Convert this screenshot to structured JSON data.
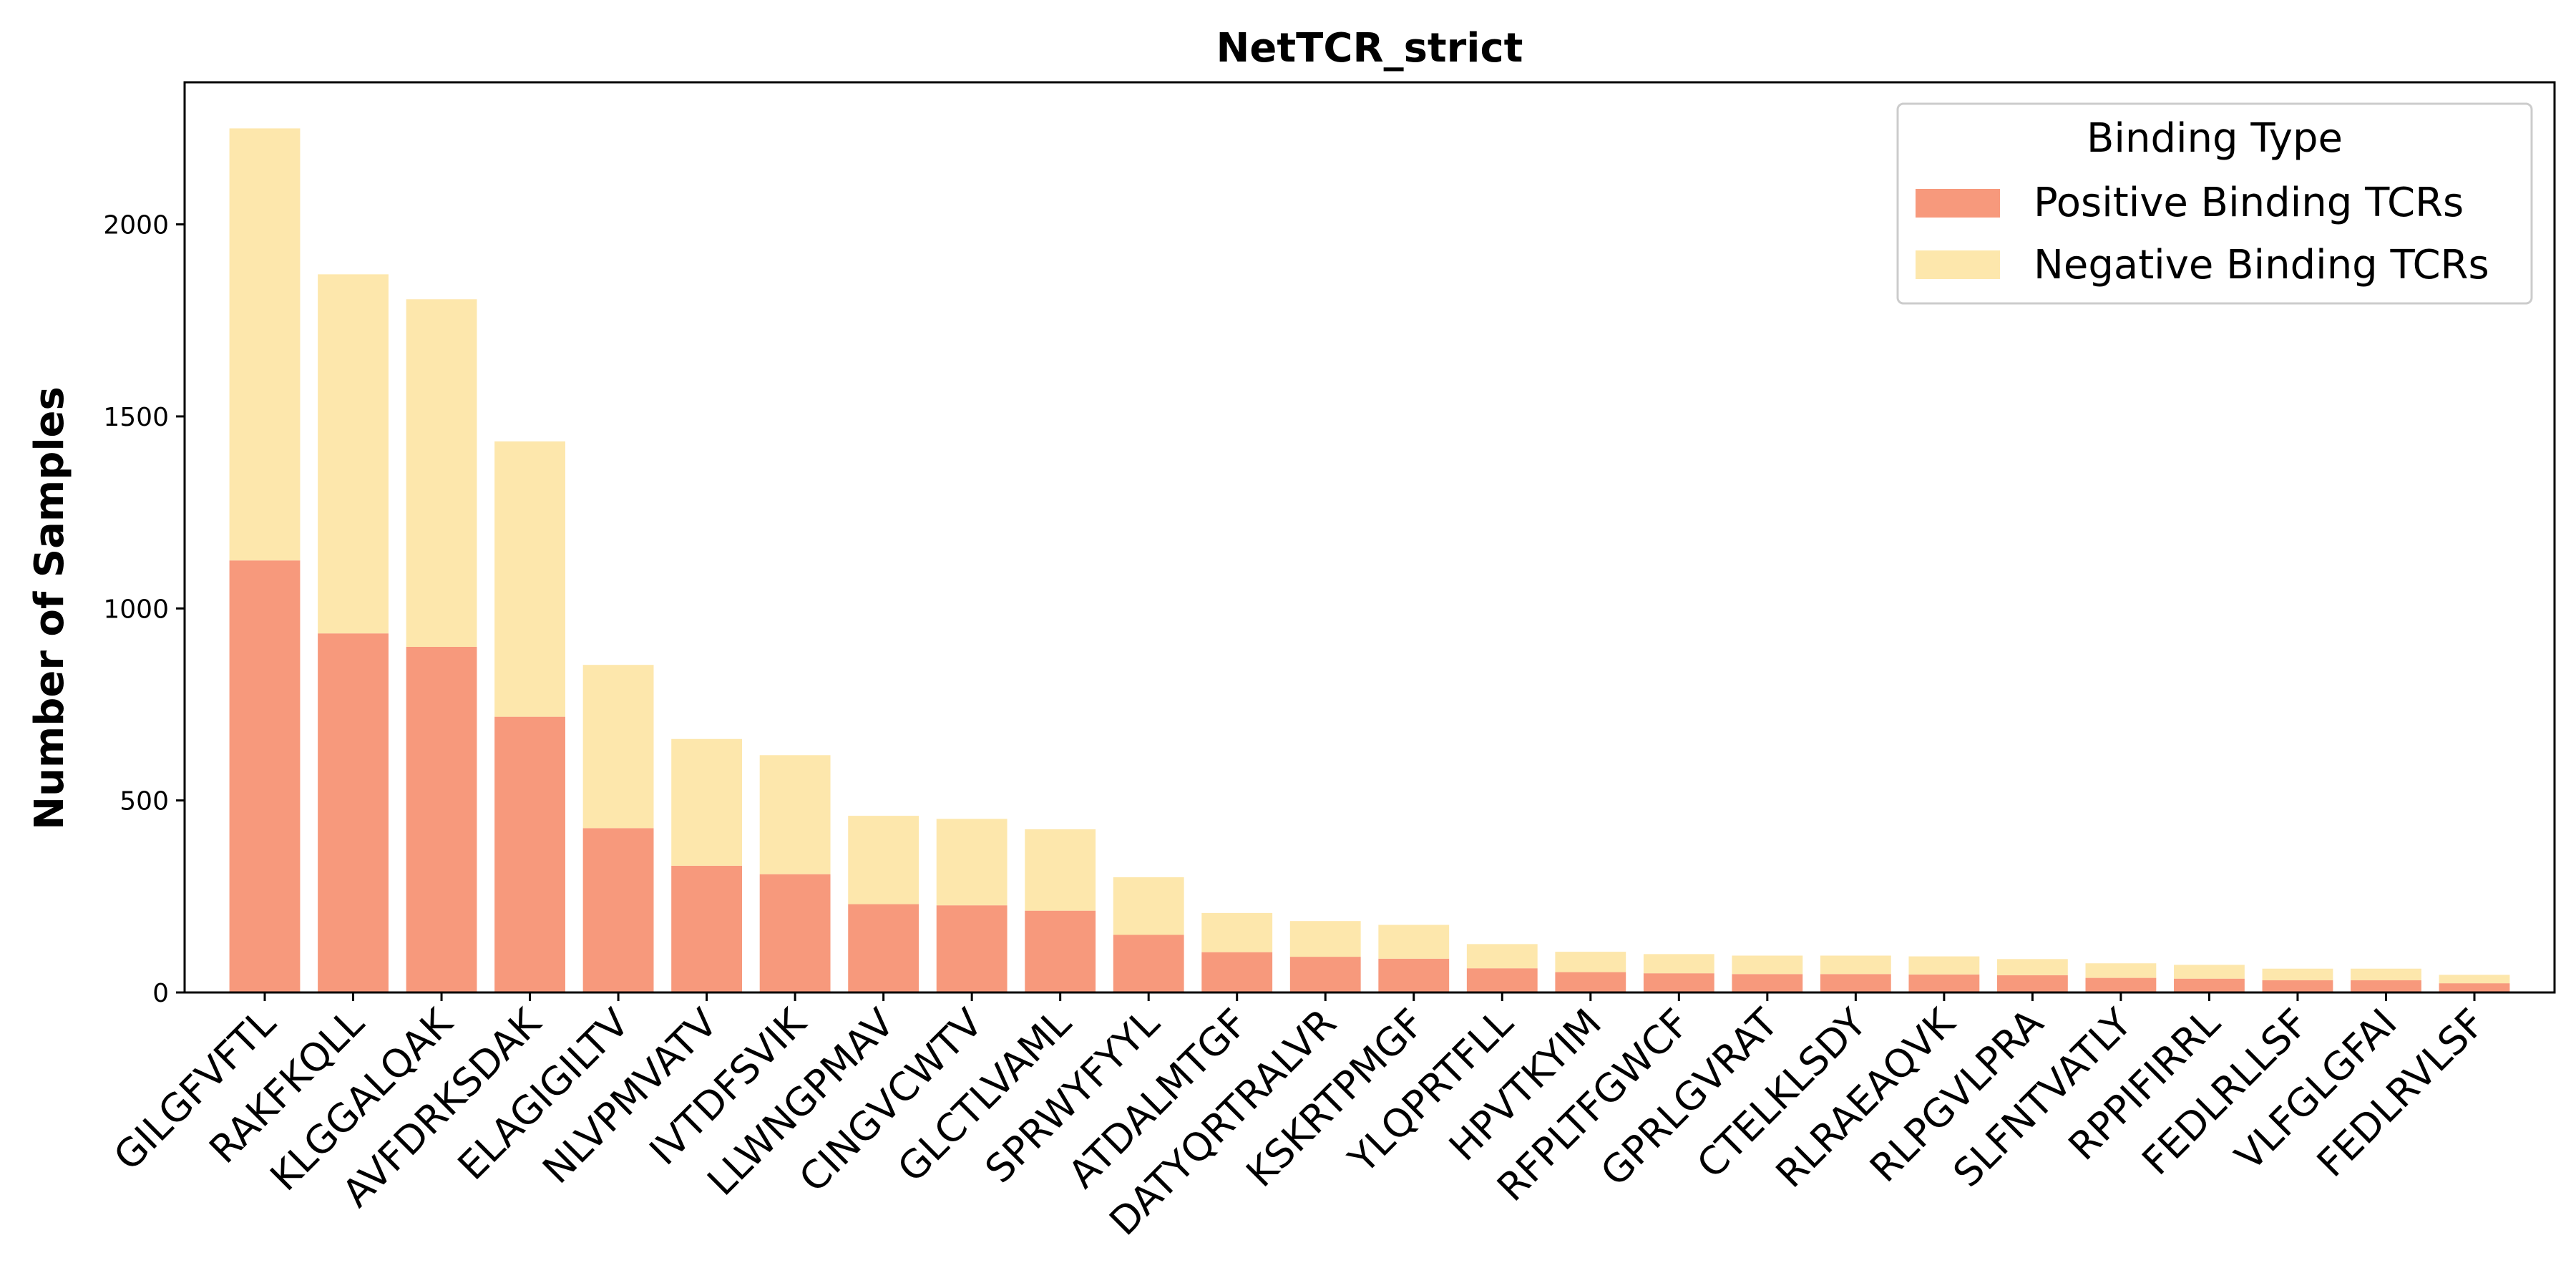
{
  "chart_data": {
    "type": "bar",
    "stacked": true,
    "title": "NetTCR_strict",
    "xlabel": "",
    "ylabel": "Number of Samples",
    "ylim": [
      0,
      2370
    ],
    "yticks": [
      0,
      500,
      1000,
      1500,
      2000
    ],
    "grid": false,
    "legend_position": "top-right",
    "legend_title": "Binding Type",
    "categories": [
      "GILGFVFTL",
      "RAKFKQLL",
      "KLGGALQAK",
      "AVFDRKSDAK",
      "ELAGIGILTV",
      "NLVPMVATV",
      "IVTDFSVIK",
      "LLWNGPMAV",
      "CINGVCWTV",
      "GLCTLVAML",
      "SPRWYFYYL",
      "ATDALMTGF",
      "DATYQRTRALVR",
      "KSKRTPMGF",
      "YLQPRTFLL",
      "HPVTKYIM",
      "RFPLTFGWCF",
      "GPRLGVRAT",
      "CTELKLSDY",
      "RLRAEAQVK",
      "RLPGVLPRA",
      "SLFNTVATLY",
      "RPPIFIRRL",
      "FEDLRLLSF",
      "VLFGLGFAI",
      "FEDLRVLSF"
    ],
    "series": [
      {
        "name": "Positive Binding TCRs",
        "color": "#f7997c",
        "values": [
          1125,
          935,
          900,
          718,
          428,
          330,
          308,
          230,
          227,
          213,
          150,
          105,
          93,
          88,
          63,
          53,
          50,
          48,
          48,
          47,
          45,
          38,
          36,
          32,
          32,
          24
        ]
      },
      {
        "name": "Negative Binding TCRs",
        "color": "#fde7ac",
        "values": [
          1125,
          935,
          905,
          717,
          425,
          330,
          310,
          230,
          225,
          212,
          150,
          102,
          93,
          88,
          63,
          53,
          50,
          48,
          48,
          47,
          42,
          38,
          36,
          30,
          30,
          22
        ]
      }
    ]
  }
}
